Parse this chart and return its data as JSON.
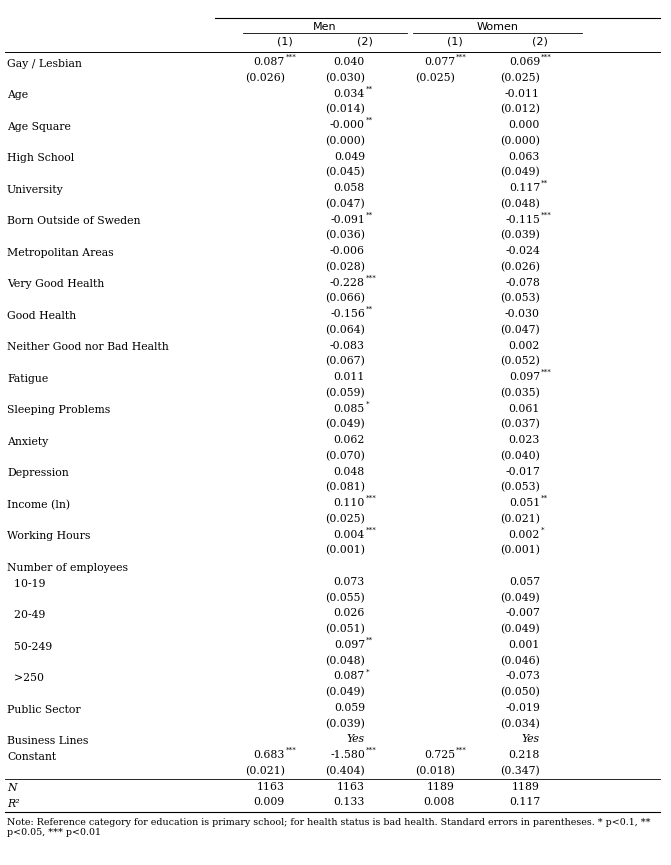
{
  "col_headers_top": [
    "Men",
    "Women"
  ],
  "col_headers_sub": [
    "(1)",
    "(2)",
    "(1)",
    "(2)"
  ],
  "rows": [
    {
      "label": "Gay / Lesbian",
      "values": [
        "0.087***",
        "0.040",
        "0.077***",
        "0.069***"
      ],
      "se": [
        "(0.026)",
        "(0.030)",
        "(0.025)",
        "(0.025)"
      ]
    },
    {
      "label": "Age",
      "values": [
        "",
        "0.034**",
        "",
        "-0.011"
      ],
      "se": [
        "",
        "(0.014)",
        "",
        "(0.012)"
      ]
    },
    {
      "label": "Age Square",
      "values": [
        "",
        "-0.000**",
        "",
        "0.000"
      ],
      "se": [
        "",
        "(0.000)",
        "",
        "(0.000)"
      ]
    },
    {
      "label": "High School",
      "values": [
        "",
        "0.049",
        "",
        "0.063"
      ],
      "se": [
        "",
        "(0.045)",
        "",
        "(0.049)"
      ]
    },
    {
      "label": "University",
      "values": [
        "",
        "0.058",
        "",
        "0.117**"
      ],
      "se": [
        "",
        "(0.047)",
        "",
        "(0.048)"
      ]
    },
    {
      "label": "Born Outside of Sweden",
      "values": [
        "",
        "-0.091**",
        "",
        "-0.115***"
      ],
      "se": [
        "",
        "(0.036)",
        "",
        "(0.039)"
      ]
    },
    {
      "label": "Metropolitan Areas",
      "values": [
        "",
        "-0.006",
        "",
        "-0.024"
      ],
      "se": [
        "",
        "(0.028)",
        "",
        "(0.026)"
      ]
    },
    {
      "label": "Very Good Health",
      "values": [
        "",
        "-0.228***",
        "",
        "-0.078"
      ],
      "se": [
        "",
        "(0.066)",
        "",
        "(0.053)"
      ]
    },
    {
      "label": "Good Health",
      "values": [
        "",
        "-0.156**",
        "",
        "-0.030"
      ],
      "se": [
        "",
        "(0.064)",
        "",
        "(0.047)"
      ]
    },
    {
      "label": "Neither Good nor Bad Health",
      "values": [
        "",
        "-0.083",
        "",
        "0.002"
      ],
      "se": [
        "",
        "(0.067)",
        "",
        "(0.052)"
      ]
    },
    {
      "label": "Fatigue",
      "values": [
        "",
        "0.011",
        "",
        "0.097***"
      ],
      "se": [
        "",
        "(0.059)",
        "",
        "(0.035)"
      ]
    },
    {
      "label": "Sleeping Problems",
      "values": [
        "",
        "0.085*",
        "",
        "0.061"
      ],
      "se": [
        "",
        "(0.049)",
        "",
        "(0.037)"
      ]
    },
    {
      "label": "Anxiety",
      "values": [
        "",
        "0.062",
        "",
        "0.023"
      ],
      "se": [
        "",
        "(0.070)",
        "",
        "(0.040)"
      ]
    },
    {
      "label": "Depression",
      "values": [
        "",
        "0.048",
        "",
        "-0.017"
      ],
      "se": [
        "",
        "(0.081)",
        "",
        "(0.053)"
      ]
    },
    {
      "label": "Income (ln)",
      "values": [
        "",
        "0.110***",
        "",
        "0.051**"
      ],
      "se": [
        "",
        "(0.025)",
        "",
        "(0.021)"
      ]
    },
    {
      "label": "Working Hours",
      "values": [
        "",
        "0.004***",
        "",
        "0.002*"
      ],
      "se": [
        "",
        "(0.001)",
        "",
        "(0.001)"
      ]
    },
    {
      "label": "Number of employees",
      "values": [
        "",
        "",
        "",
        ""
      ],
      "se": null
    },
    {
      "label": "  10-19",
      "values": [
        "",
        "0.073",
        "",
        "0.057"
      ],
      "se": [
        "",
        "(0.055)",
        "",
        "(0.049)"
      ]
    },
    {
      "label": "  20-49",
      "values": [
        "",
        "0.026",
        "",
        "-0.007"
      ],
      "se": [
        "",
        "(0.051)",
        "",
        "(0.049)"
      ]
    },
    {
      "label": "  50-249",
      "values": [
        "",
        "0.097**",
        "",
        "0.001"
      ],
      "se": [
        "",
        "(0.048)",
        "",
        "(0.046)"
      ]
    },
    {
      "label": "  >250",
      "values": [
        "",
        "0.087*",
        "",
        "-0.073"
      ],
      "se": [
        "",
        "(0.049)",
        "",
        "(0.050)"
      ]
    },
    {
      "label": "Public Sector",
      "values": [
        "",
        "0.059",
        "",
        "-0.019"
      ],
      "se": [
        "",
        "(0.039)",
        "",
        "(0.034)"
      ]
    },
    {
      "label": "Business Lines",
      "values": [
        "",
        "Yes",
        "",
        "Yes"
      ],
      "se": null,
      "italic_vals": [
        false,
        true,
        false,
        true
      ]
    },
    {
      "label": "Constant",
      "values": [
        "0.683***",
        "-1.580***",
        "0.725***",
        "0.218"
      ],
      "se": [
        "(0.021)",
        "(0.404)",
        "(0.018)",
        "(0.347)"
      ]
    },
    {
      "label": "N",
      "values": [
        "1163",
        "1163",
        "1189",
        "1189"
      ],
      "se": null,
      "separator_above": true,
      "italic_label": true
    },
    {
      "label": "R²",
      "values": [
        "0.009",
        "0.133",
        "0.008",
        "0.117"
      ],
      "se": null,
      "italic_label": true
    }
  ],
  "note": "Note: Reference category for education is primary school; for health status is bad health. Standard errors in parentheses. * p<0.1, ** p<0.05, *** p<0.01",
  "bg_color": "#ffffff",
  "text_color": "#000000",
  "font_size": 7.8,
  "header_font_size": 8.0,
  "note_font_size": 6.8
}
